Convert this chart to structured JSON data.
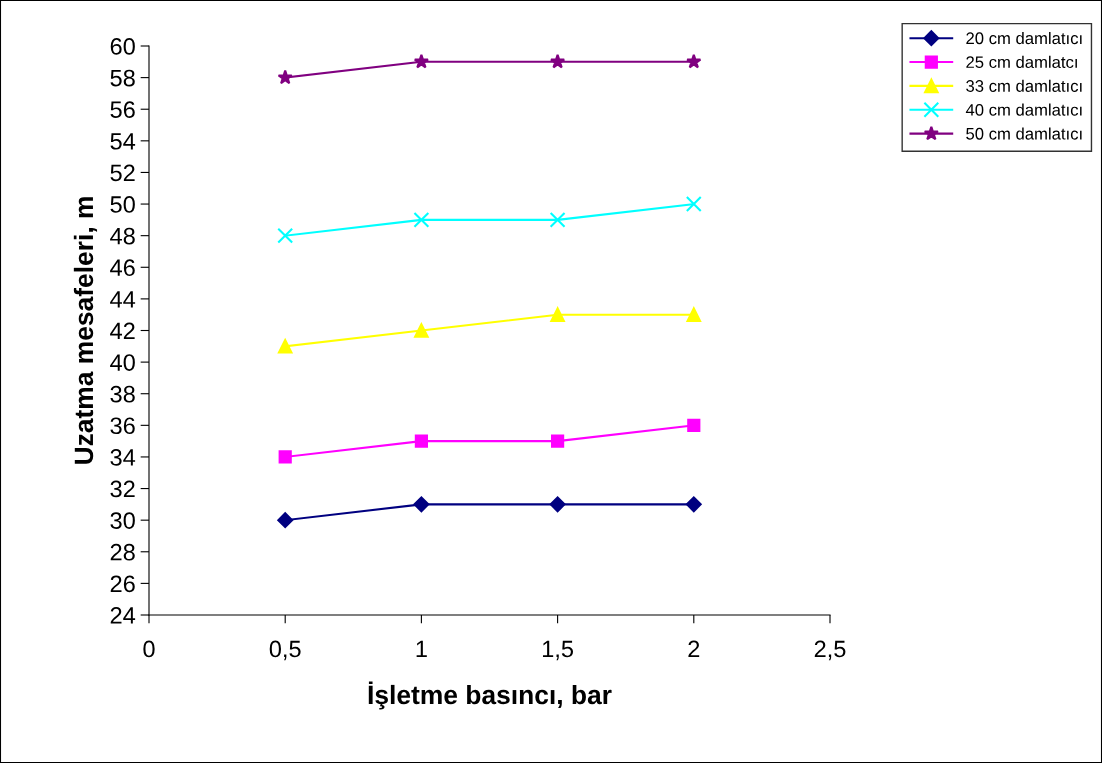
{
  "chart_data": {
    "type": "line",
    "xlabel": "İşletme basıncı, bar",
    "ylabel": "Uzatma mesafeleri, m",
    "x": [
      0.5,
      1,
      1.5,
      2
    ],
    "series": [
      {
        "name": "20 cm damlatıcı",
        "color": "#000080",
        "marker": "diamond",
        "values": [
          30,
          31,
          31,
          31
        ]
      },
      {
        "name": "25 cm damlatcı",
        "color": "#ff00ff",
        "marker": "square",
        "values": [
          34,
          35,
          35,
          36
        ]
      },
      {
        "name": "33 cm damlatıcı",
        "color": "#ffff00",
        "marker": "triangle",
        "values": [
          41,
          42,
          43,
          43
        ]
      },
      {
        "name": "40 cm damlatıcı",
        "color": "#00ffff",
        "marker": "cross",
        "values": [
          48,
          49,
          49,
          50
        ]
      },
      {
        "name": "50 cm damlatıcı",
        "color": "#800080",
        "marker": "star",
        "values": [
          58,
          59,
          59,
          59
        ]
      }
    ],
    "xlim": [
      0,
      2.5
    ],
    "xticks": [
      0,
      {
        "value": 0.5,
        "label": "0,5"
      },
      1,
      {
        "value": 1.5,
        "label": "1,5"
      },
      2,
      {
        "value": 2.5,
        "label": "2,5"
      }
    ],
    "ylim": [
      24,
      60
    ],
    "yticks": [
      24,
      26,
      28,
      30,
      32,
      34,
      36,
      38,
      40,
      42,
      44,
      46,
      48,
      50,
      52,
      54,
      56,
      58,
      60
    ],
    "grid": false,
    "legend": "top right",
    "line_style": "solid"
  }
}
